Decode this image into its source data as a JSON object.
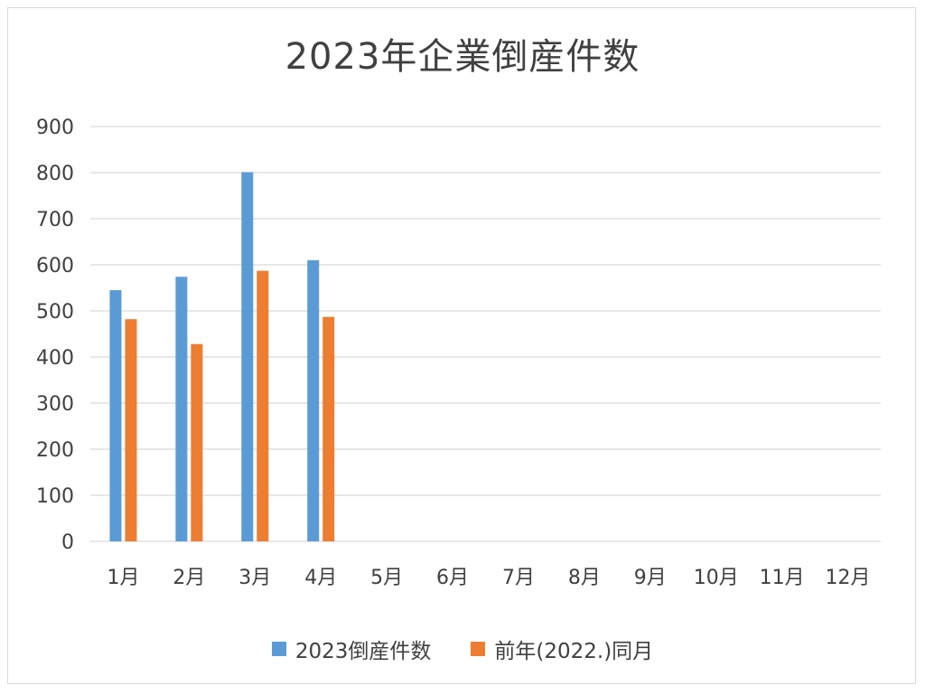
{
  "chart_data": {
    "type": "bar",
    "title": "2023年企業倒産件数",
    "categories": [
      "1月",
      "2月",
      "3月",
      "4月",
      "5月",
      "6月",
      "7月",
      "8月",
      "9月",
      "10月",
      "11月",
      "12月"
    ],
    "series": [
      {
        "name": "2023倒産件数",
        "color": "#5b9bd5",
        "values": [
          545,
          574,
          801,
          610,
          null,
          null,
          null,
          null,
          null,
          null,
          null,
          null
        ]
      },
      {
        "name": "前年(2022.)同月",
        "color": "#ed7d31",
        "values": [
          482,
          428,
          587,
          487,
          null,
          null,
          null,
          null,
          null,
          null,
          null,
          null
        ]
      }
    ],
    "yticks": [
      "0",
      "100",
      "200",
      "300",
      "400",
      "500",
      "600",
      "700",
      "800",
      "900"
    ],
    "ylim": [
      0,
      900
    ],
    "grid": true,
    "legend_position": "bottom",
    "xlabel": "",
    "ylabel": ""
  }
}
